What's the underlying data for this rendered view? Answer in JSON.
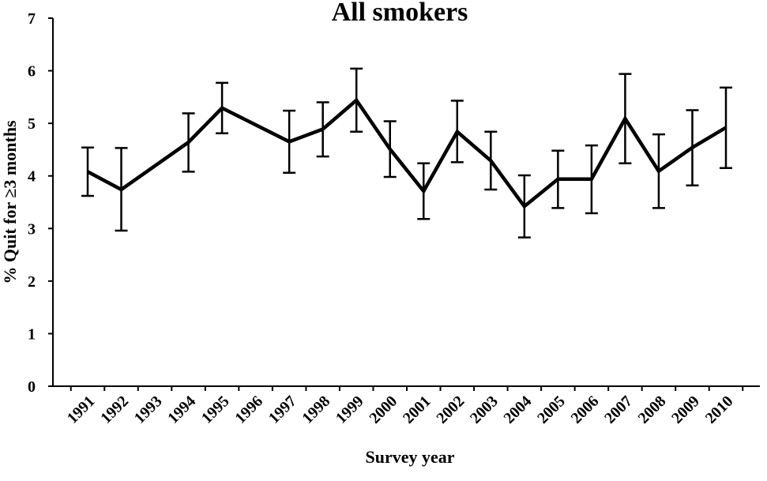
{
  "chart_data": {
    "type": "line",
    "title": "All smokers",
    "xlabel": "Survey year",
    "ylabel": "% Quit for ≥3 months",
    "ylim": [
      0,
      7
    ],
    "yticks": [
      "0",
      "1",
      "2",
      "3",
      "4",
      "5",
      "6",
      "7"
    ],
    "categories": [
      "1991",
      "1992",
      "1993",
      "1994",
      "1995",
      "1996",
      "1997",
      "1998",
      "1999",
      "2000",
      "2001",
      "2002",
      "2003",
      "2004",
      "2005",
      "2006",
      "2007",
      "2008",
      "2009",
      "2010"
    ],
    "series": [
      {
        "values": [
          4.08,
          3.74,
          null,
          4.64,
          5.29,
          null,
          4.65,
          4.89,
          5.44,
          4.51,
          3.71,
          4.84,
          4.29,
          3.42,
          3.94,
          3.94,
          5.09,
          4.09,
          4.54,
          4.92
        ],
        "lower": [
          3.62,
          2.96,
          null,
          4.08,
          4.81,
          null,
          4.06,
          4.37,
          4.84,
          3.98,
          3.18,
          4.26,
          3.74,
          2.83,
          3.39,
          3.29,
          4.24,
          3.39,
          3.82,
          4.15
        ],
        "upper": [
          4.54,
          4.53,
          null,
          5.19,
          5.77,
          null,
          5.24,
          5.4,
          6.04,
          5.04,
          4.24,
          5.43,
          4.84,
          4.01,
          4.48,
          4.58,
          5.94,
          4.79,
          5.25,
          5.68
        ]
      }
    ],
    "grid": false,
    "legend": "none",
    "line_color": "#000000"
  }
}
